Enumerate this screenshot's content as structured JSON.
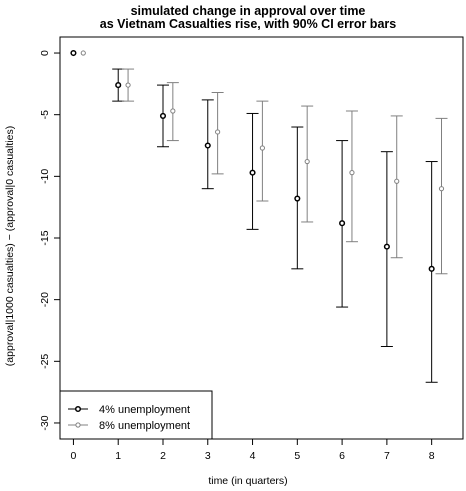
{
  "chart_data": {
    "type": "scatter",
    "title": "simulated change in approval over time",
    "subtitle": "as Vietnam Casualties rise, with 90% CI error bars",
    "xlabel": "time (in quarters)",
    "ylabel": "(approval|1000 casualties) − (approval|0 casualties)",
    "x_ticks": [
      0,
      1,
      2,
      3,
      4,
      5,
      6,
      7,
      8
    ],
    "y_ticks": [
      0,
      -5,
      -10,
      -15,
      -20,
      -25,
      -30
    ],
    "xlim": [
      -0.3,
      8.7
    ],
    "ylim": [
      -31.3,
      1.3
    ],
    "legend_position": "bottom-left",
    "series": [
      {
        "name": "4% unemployment",
        "color": "#000000",
        "x": [
          0,
          1,
          2,
          3,
          4,
          5,
          6,
          7,
          8
        ],
        "y": [
          0,
          -2.6,
          -5.1,
          -7.5,
          -9.7,
          -11.8,
          -13.8,
          -15.7,
          -17.5
        ],
        "lower": [
          0,
          -3.9,
          -7.6,
          -11.0,
          -14.3,
          -17.5,
          -20.6,
          -23.8,
          -26.7
        ],
        "upper": [
          0,
          -1.3,
          -2.6,
          -3.8,
          -4.9,
          -6.0,
          -7.1,
          -8.0,
          -8.8
        ]
      },
      {
        "name": "8% unemployment",
        "color": "#808080",
        "x": [
          0,
          1,
          2,
          3,
          4,
          5,
          6,
          7,
          8
        ],
        "y": [
          0,
          -2.6,
          -4.7,
          -6.4,
          -7.7,
          -8.8,
          -9.7,
          -10.4,
          -11.0
        ],
        "lower": [
          0,
          -3.9,
          -7.1,
          -9.8,
          -12.0,
          -13.7,
          -15.3,
          -16.6,
          -17.9
        ],
        "upper": [
          0,
          -1.3,
          -2.4,
          -3.2,
          -3.9,
          -4.3,
          -4.7,
          -5.1,
          -5.3
        ]
      }
    ]
  }
}
